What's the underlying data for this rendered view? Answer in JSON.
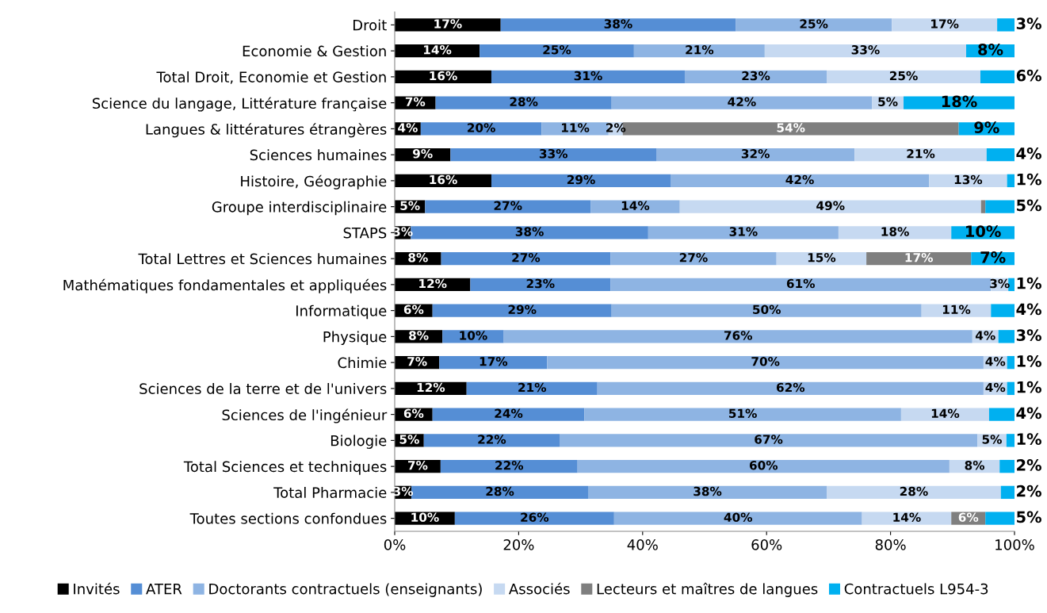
{
  "chart_data": {
    "type": "bar",
    "orientation": "horizontal",
    "stacked": true,
    "legend": "bottom",
    "grid": false,
    "categories": [
      "Droit",
      "Economie & Gestion",
      "Total Droit, Economie et Gestion",
      "Science du langage, Littérature française",
      "Langues & littératures étrangères",
      "Sciences humaines",
      "Histoire, Géographie",
      "Groupe interdisciplinaire",
      "STAPS",
      "Total Lettres et Sciences humaines",
      "Mathématiques fondamentales et appliquées",
      "Informatique",
      "Physique",
      "Chimie",
      "Sciences de la terre et de l'univers",
      "Sciences de l'ingénieur",
      "Biologie",
      "Total Sciences et techniques",
      "Total Pharmacie",
      "Toutes sections confondues"
    ],
    "xlim": [
      0,
      100
    ],
    "xticks": [
      {
        "value": 0,
        "label": "0%"
      },
      {
        "value": 20,
        "label": "20%"
      },
      {
        "value": 40,
        "label": "40%"
      },
      {
        "value": 60,
        "label": "60%"
      },
      {
        "value": 80,
        "label": "80%"
      },
      {
        "value": 100,
        "label": "100%"
      }
    ],
    "series": [
      {
        "name": "Invités",
        "color": "#000000",
        "values": [
          17.1,
          13.7,
          15.6,
          6.6,
          4.2,
          9.0,
          15.6,
          4.9,
          2.6,
          7.5,
          12.2,
          6.1,
          7.7,
          7.2,
          11.6,
          6.1,
          4.7,
          7.4,
          2.7,
          9.7
        ],
        "value_labels": [
          "17%",
          "14%",
          "16%",
          "7%",
          "4%",
          "9%",
          "16%",
          "5%",
          "3%",
          "8%",
          "12%",
          "6%",
          "8%",
          "7%",
          "12%",
          "6%",
          "5%",
          "7%",
          "3%",
          "10%"
        ]
      },
      {
        "name": "ATER",
        "color": "#558ed5",
        "values": [
          37.9,
          24.9,
          31.2,
          28.4,
          19.5,
          33.2,
          28.9,
          26.7,
          38.3,
          27.3,
          22.6,
          28.9,
          9.9,
          17.4,
          21.1,
          24.5,
          21.9,
          22.1,
          28.5,
          25.7
        ],
        "value_labels": [
          "38%",
          "25%",
          "31%",
          "28%",
          "20%",
          "33%",
          "29%",
          "27%",
          "38%",
          "27%",
          "23%",
          "29%",
          "10%",
          "17%",
          "21%",
          "24%",
          "22%",
          "22%",
          "28%",
          "26%"
        ]
      },
      {
        "name": "Doctorants contractuels (enseignants)",
        "color": "#8eb4e3",
        "values": [
          25.2,
          21.1,
          22.9,
          42.0,
          10.8,
          32.0,
          41.7,
          14.4,
          30.7,
          26.8,
          61.4,
          50.0,
          75.6,
          70.4,
          62.3,
          51.1,
          67.4,
          60.0,
          38.5,
          40.0
        ],
        "value_labels": [
          "25%",
          "21%",
          "23%",
          "42%",
          "11%",
          "32%",
          "42%",
          "14%",
          "31%",
          "27%",
          "61%",
          "50%",
          "76%",
          "70%",
          "62%",
          "51%",
          "67%",
          "60%",
          "38%",
          "40%"
        ]
      },
      {
        "name": "Associés",
        "color": "#c6d9f1",
        "values": [
          17.0,
          32.5,
          24.8,
          5.1,
          2.3,
          21.3,
          12.6,
          48.6,
          18.2,
          14.5,
          2.8,
          11.2,
          4.2,
          3.8,
          3.8,
          14.2,
          4.7,
          8.1,
          28.1,
          14.4
        ],
        "value_labels": [
          "17%",
          "33%",
          "25%",
          "5%",
          "2%",
          "21%",
          "13%",
          "49%",
          "18%",
          "15%",
          "3%",
          "11%",
          "4%",
          "4%",
          "4%",
          "14%",
          "5%",
          "8%",
          "28%",
          "14%"
        ]
      },
      {
        "name": "Lecteurs et maîtres de langues",
        "color": "#7f7f7f",
        "values": [
          null,
          null,
          null,
          null,
          54.2,
          null,
          null,
          0.7,
          null,
          16.9,
          null,
          null,
          null,
          null,
          null,
          null,
          null,
          null,
          null,
          5.5
        ],
        "value_labels": [
          null,
          null,
          null,
          null,
          "54%",
          null,
          null,
          null,
          null,
          "17%",
          null,
          null,
          null,
          null,
          null,
          null,
          null,
          null,
          null,
          "6%"
        ]
      },
      {
        "name": "Contractuels L954-3",
        "color": "#00b0f0",
        "values": [
          2.8,
          7.8,
          5.5,
          17.9,
          9.0,
          4.5,
          1.2,
          4.7,
          10.2,
          7.0,
          1.0,
          3.8,
          2.6,
          1.2,
          1.2,
          4.1,
          1.3,
          2.4,
          2.2,
          4.7
        ],
        "value_labels": [
          "3%",
          "8%",
          "6%",
          "18%",
          "9%",
          "4%",
          "1%",
          "5%",
          "10%",
          "7%",
          "1%",
          "4%",
          "3%",
          "1%",
          "1%",
          "4%",
          "1%",
          "2%",
          "2%",
          "5%"
        ]
      }
    ]
  }
}
